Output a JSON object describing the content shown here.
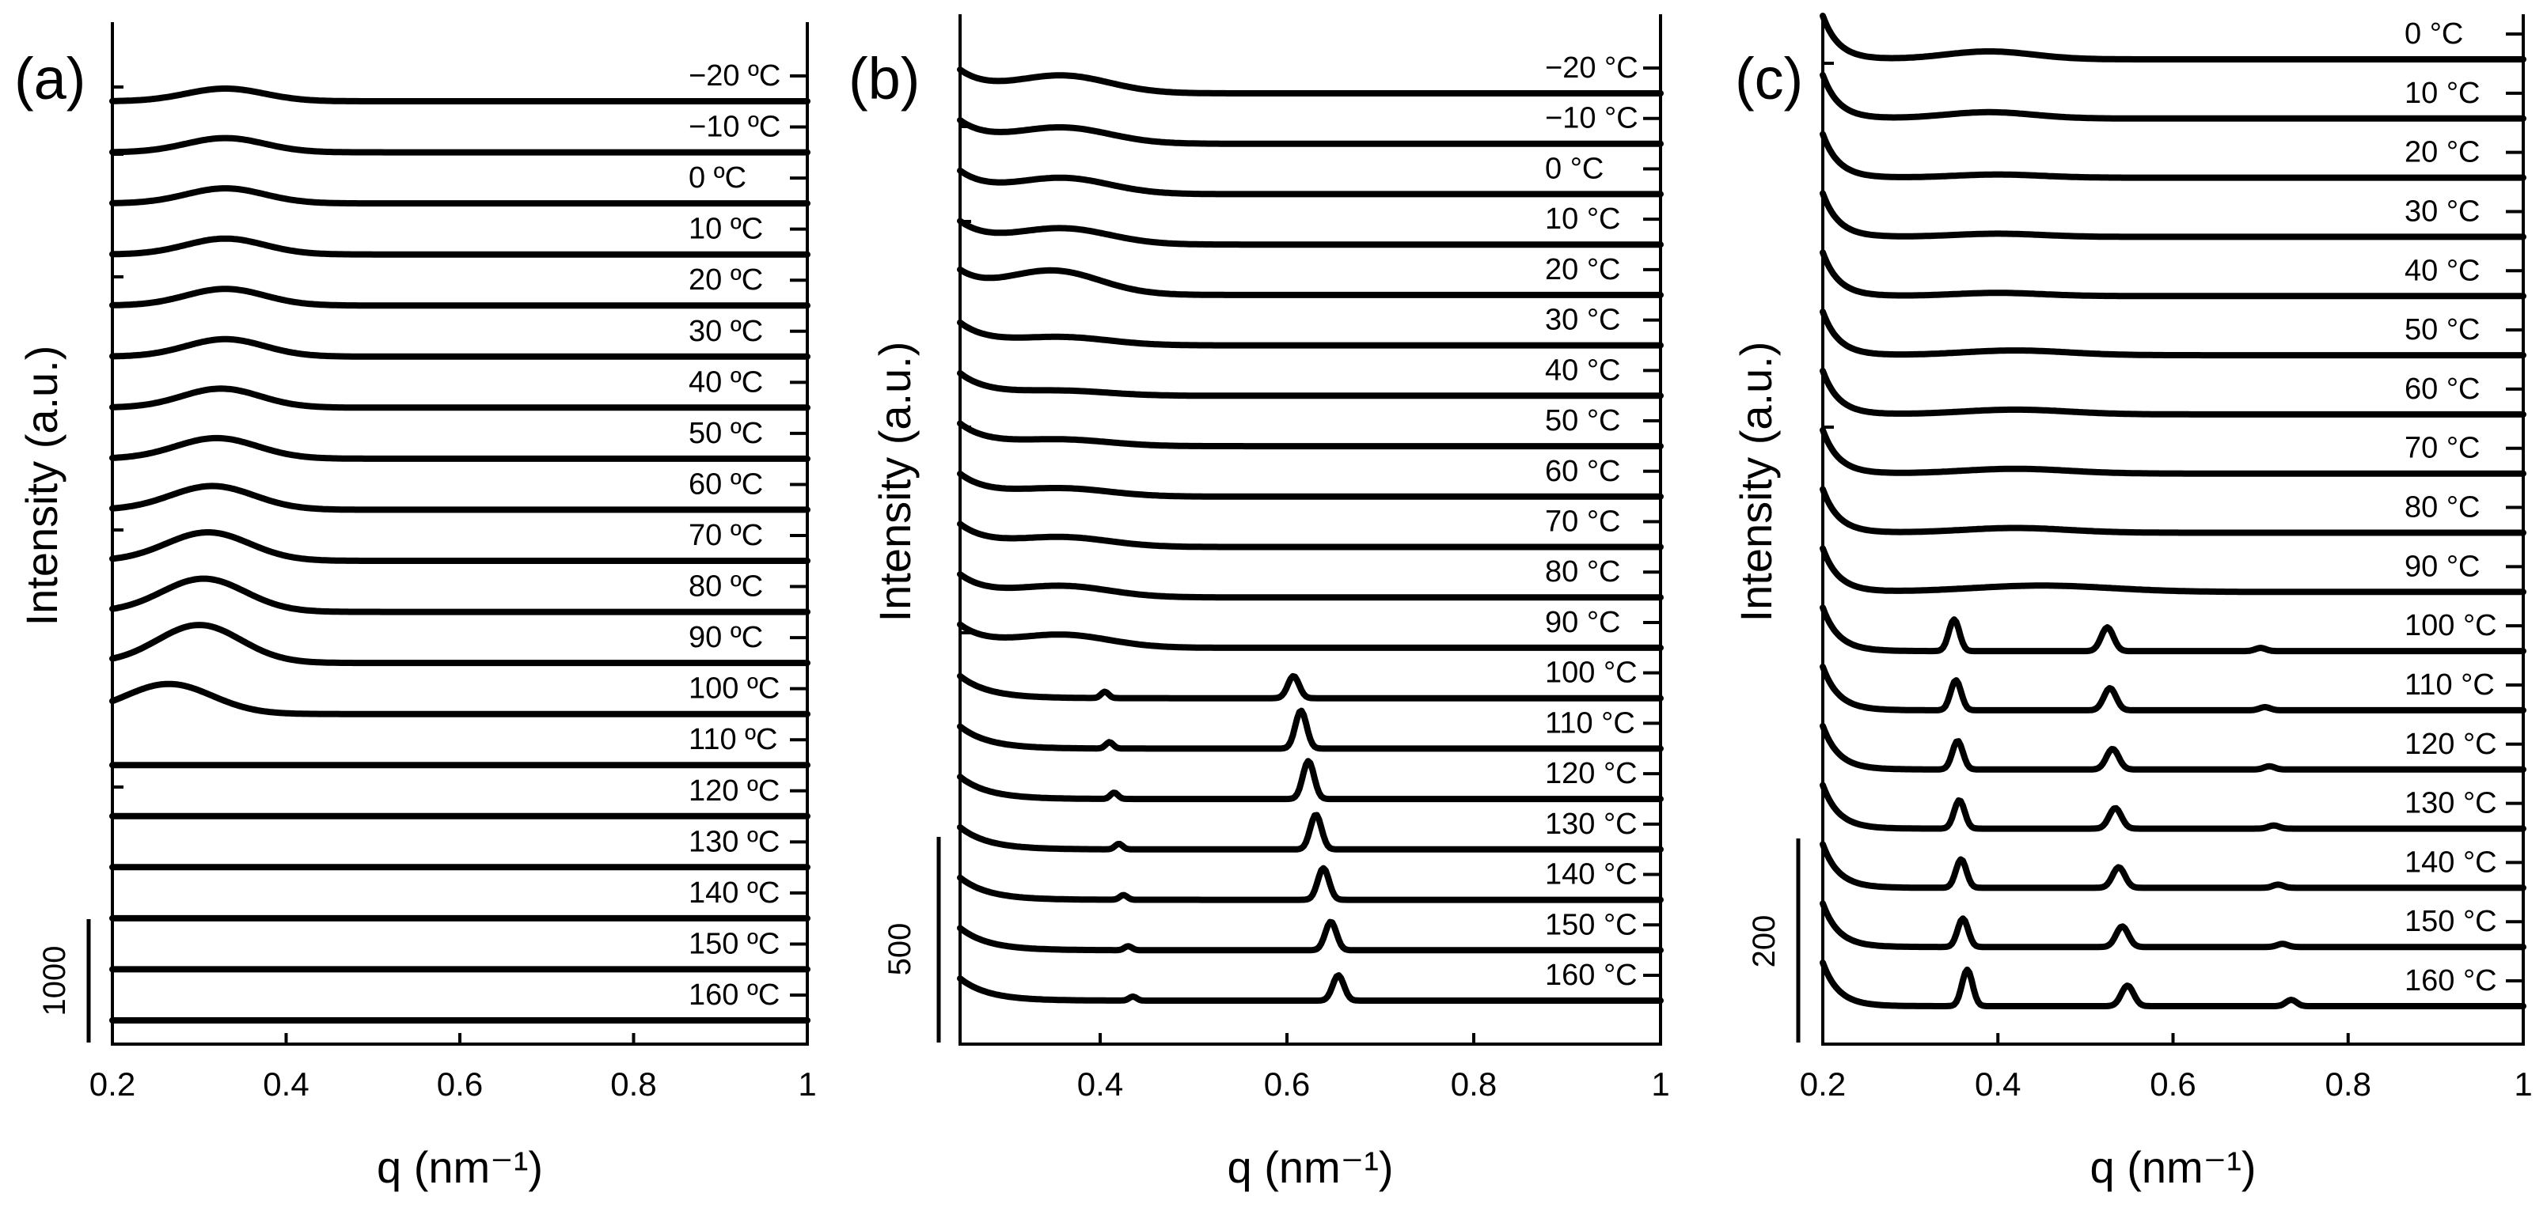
{
  "chart_data": [
    {
      "type": "line",
      "panel_label": "(a)",
      "xlabel": "q (nm⁻¹)",
      "ylabel": "Intensity (a.u.)",
      "xlim": [
        0.2,
        1.0
      ],
      "xticks": [
        "0.2",
        "0.4",
        "0.6",
        "0.8",
        "1"
      ],
      "scale_bar_label": "1000",
      "series": [
        {
          "name": "−20 ºC",
          "peaks": [
            {
              "q": 0.33,
              "h": 16,
              "w": 0.045
            }
          ]
        },
        {
          "name": "−10 ºC",
          "peaks": [
            {
              "q": 0.33,
              "h": 18,
              "w": 0.045
            }
          ]
        },
        {
          "name": "0 ºC",
          "peaks": [
            {
              "q": 0.33,
              "h": 19,
              "w": 0.045
            }
          ]
        },
        {
          "name": "10 ºC",
          "peaks": [
            {
              "q": 0.33,
              "h": 20,
              "w": 0.045
            }
          ]
        },
        {
          "name": "20 ºC",
          "peaks": [
            {
              "q": 0.33,
              "h": 21,
              "w": 0.045
            }
          ]
        },
        {
          "name": "30 ºC",
          "peaks": [
            {
              "q": 0.33,
              "h": 22,
              "w": 0.045
            }
          ]
        },
        {
          "name": "40 ºC",
          "peaks": [
            {
              "q": 0.325,
              "h": 24,
              "w": 0.045
            }
          ]
        },
        {
          "name": "50 ºC",
          "peaks": [
            {
              "q": 0.32,
              "h": 26,
              "w": 0.047
            }
          ]
        },
        {
          "name": "60 ºC",
          "peaks": [
            {
              "q": 0.315,
              "h": 30,
              "w": 0.048
            }
          ]
        },
        {
          "name": "70 ºC",
          "peaks": [
            {
              "q": 0.31,
              "h": 36,
              "w": 0.048
            }
          ]
        },
        {
          "name": "80 ºC",
          "peaks": [
            {
              "q": 0.305,
              "h": 42,
              "w": 0.048
            }
          ]
        },
        {
          "name": "90 ºC",
          "peaks": [
            {
              "q": 0.3,
              "h": 48,
              "w": 0.048
            }
          ]
        },
        {
          "name": "100 ºC",
          "peaks": [
            {
              "q": 0.265,
              "h": 38,
              "w": 0.05
            }
          ]
        },
        {
          "name": "110 ºC",
          "peaks": []
        },
        {
          "name": "120 ºC",
          "peaks": []
        },
        {
          "name": "130 ºC",
          "peaks": []
        },
        {
          "name": "140 ºC",
          "peaks": []
        },
        {
          "name": "150 ºC",
          "peaks": []
        },
        {
          "name": "160 ºC",
          "peaks": []
        }
      ]
    },
    {
      "type": "line",
      "panel_label": "(b)",
      "xlabel": "q (nm⁻¹)",
      "ylabel": "Intensity (a.u.)",
      "xlim": [
        0.25,
        1.0
      ],
      "xticks": [
        "0.4",
        "0.6",
        "0.8",
        "1"
      ],
      "scale_bar_label": "500",
      "series": [
        {
          "name": "−20 °C",
          "peaks": [
            {
              "q": 0.36,
              "h": 22,
              "w": 0.05
            }
          ]
        },
        {
          "name": "−10 °C",
          "peaks": [
            {
              "q": 0.36,
              "h": 20,
              "w": 0.05
            }
          ]
        },
        {
          "name": "0 °C",
          "peaks": [
            {
              "q": 0.36,
              "h": 20,
              "w": 0.05
            }
          ]
        },
        {
          "name": "10 °C",
          "peaks": [
            {
              "q": 0.36,
              "h": 20,
              "w": 0.05
            }
          ]
        },
        {
          "name": "20 °C",
          "peaks": [
            {
              "q": 0.35,
              "h": 30,
              "w": 0.05
            }
          ]
        },
        {
          "name": "30 °C",
          "peaks": [
            {
              "q": 0.36,
              "h": 10,
              "w": 0.05
            }
          ]
        },
        {
          "name": "40 °C",
          "peaks": [
            {
              "q": 0.36,
              "h": 6,
              "w": 0.05
            }
          ]
        },
        {
          "name": "50 °C",
          "peaks": [
            {
              "q": 0.36,
              "h": 8,
              "w": 0.05
            }
          ]
        },
        {
          "name": "60 °C",
          "peaks": [
            {
              "q": 0.36,
              "h": 10,
              "w": 0.05
            }
          ]
        },
        {
          "name": "70 °C",
          "peaks": [
            {
              "q": 0.36,
              "h": 12,
              "w": 0.05
            }
          ]
        },
        {
          "name": "80 °C",
          "peaks": [
            {
              "q": 0.36,
              "h": 14,
              "w": 0.05
            }
          ]
        },
        {
          "name": "90 °C",
          "peaks": [
            {
              "q": 0.36,
              "h": 16,
              "w": 0.05
            }
          ]
        },
        {
          "name": "100 °C",
          "peaks": [
            {
              "q": 0.405,
              "h": 8,
              "w": 0.004
            },
            {
              "q": 0.607,
              "h": 28,
              "w": 0.006
            }
          ]
        },
        {
          "name": "110 °C",
          "peaks": [
            {
              "q": 0.41,
              "h": 8,
              "w": 0.004
            },
            {
              "q": 0.615,
              "h": 48,
              "w": 0.006
            }
          ]
        },
        {
          "name": "120 °C",
          "peaks": [
            {
              "q": 0.415,
              "h": 8,
              "w": 0.004
            },
            {
              "q": 0.623,
              "h": 48,
              "w": 0.006
            }
          ]
        },
        {
          "name": "130 °C",
          "peaks": [
            {
              "q": 0.42,
              "h": 7,
              "w": 0.004
            },
            {
              "q": 0.631,
              "h": 44,
              "w": 0.006
            }
          ]
        },
        {
          "name": "140 °C",
          "peaks": [
            {
              "q": 0.425,
              "h": 6,
              "w": 0.004
            },
            {
              "q": 0.639,
              "h": 40,
              "w": 0.006
            }
          ]
        },
        {
          "name": "150 °C",
          "peaks": [
            {
              "q": 0.43,
              "h": 5,
              "w": 0.004
            },
            {
              "q": 0.647,
              "h": 36,
              "w": 0.006
            }
          ]
        },
        {
          "name": "160 °C",
          "peaks": [
            {
              "q": 0.435,
              "h": 5,
              "w": 0.004
            },
            {
              "q": 0.655,
              "h": 32,
              "w": 0.006
            }
          ]
        }
      ]
    },
    {
      "type": "line",
      "panel_label": "(c)",
      "xlabel": "q (nm⁻¹)",
      "ylabel": "Intensity (a.u.)",
      "xlim": [
        0.2,
        1.0
      ],
      "xticks": [
        "0.2",
        "0.4",
        "0.6",
        "0.8",
        "1"
      ],
      "scale_bar_label": "200",
      "series": [
        {
          "name": "0 °C",
          "peaks": [
            {
              "q": 0.39,
              "h": 10,
              "w": 0.05
            }
          ]
        },
        {
          "name": "10 °C",
          "peaks": [
            {
              "q": 0.39,
              "h": 8,
              "w": 0.05
            }
          ]
        },
        {
          "name": "20 °C",
          "peaks": [
            {
              "q": 0.4,
              "h": 4,
              "w": 0.05
            }
          ]
        },
        {
          "name": "30 °C",
          "peaks": [
            {
              "q": 0.4,
              "h": 4,
              "w": 0.05
            }
          ]
        },
        {
          "name": "40 °C",
          "peaks": [
            {
              "q": 0.4,
              "h": 4,
              "w": 0.05
            }
          ]
        },
        {
          "name": "50 °C",
          "peaks": [
            {
              "q": 0.42,
              "h": 6,
              "w": 0.06
            }
          ]
        },
        {
          "name": "60 °C",
          "peaks": [
            {
              "q": 0.42,
              "h": 6,
              "w": 0.06
            }
          ]
        },
        {
          "name": "70 °C",
          "peaks": [
            {
              "q": 0.42,
              "h": 6,
              "w": 0.06
            }
          ]
        },
        {
          "name": "80 °C",
          "peaks": [
            {
              "q": 0.42,
              "h": 6,
              "w": 0.06
            }
          ]
        },
        {
          "name": "90 °C",
          "peaks": [
            {
              "q": 0.45,
              "h": 8,
              "w": 0.08
            }
          ]
        },
        {
          "name": "100 °C",
          "peaks": [
            {
              "q": 0.35,
              "h": 40,
              "w": 0.006
            },
            {
              "q": 0.525,
              "h": 30,
              "w": 0.007
            },
            {
              "q": 0.7,
              "h": 4,
              "w": 0.006
            }
          ]
        },
        {
          "name": "110 °C",
          "peaks": [
            {
              "q": 0.352,
              "h": 38,
              "w": 0.006
            },
            {
              "q": 0.528,
              "h": 28,
              "w": 0.007
            },
            {
              "q": 0.705,
              "h": 4,
              "w": 0.006
            }
          ]
        },
        {
          "name": "120 °C",
          "peaks": [
            {
              "q": 0.354,
              "h": 36,
              "w": 0.006
            },
            {
              "q": 0.531,
              "h": 26,
              "w": 0.007
            },
            {
              "q": 0.71,
              "h": 4,
              "w": 0.006
            }
          ]
        },
        {
          "name": "130 °C",
          "peaks": [
            {
              "q": 0.356,
              "h": 36,
              "w": 0.006
            },
            {
              "q": 0.534,
              "h": 26,
              "w": 0.007
            },
            {
              "q": 0.715,
              "h": 4,
              "w": 0.006
            }
          ]
        },
        {
          "name": "140 °C",
          "peaks": [
            {
              "q": 0.358,
              "h": 36,
              "w": 0.006
            },
            {
              "q": 0.538,
              "h": 26,
              "w": 0.007
            },
            {
              "q": 0.72,
              "h": 4,
              "w": 0.006
            }
          ]
        },
        {
          "name": "150 °C",
          "peaks": [
            {
              "q": 0.36,
              "h": 36,
              "w": 0.006
            },
            {
              "q": 0.542,
              "h": 26,
              "w": 0.007
            },
            {
              "q": 0.725,
              "h": 4,
              "w": 0.006
            }
          ]
        },
        {
          "name": "160 °C",
          "peaks": [
            {
              "q": 0.365,
              "h": 46,
              "w": 0.006
            },
            {
              "q": 0.548,
              "h": 26,
              "w": 0.007
            },
            {
              "q": 0.735,
              "h": 8,
              "w": 0.006
            }
          ]
        }
      ]
    }
  ]
}
